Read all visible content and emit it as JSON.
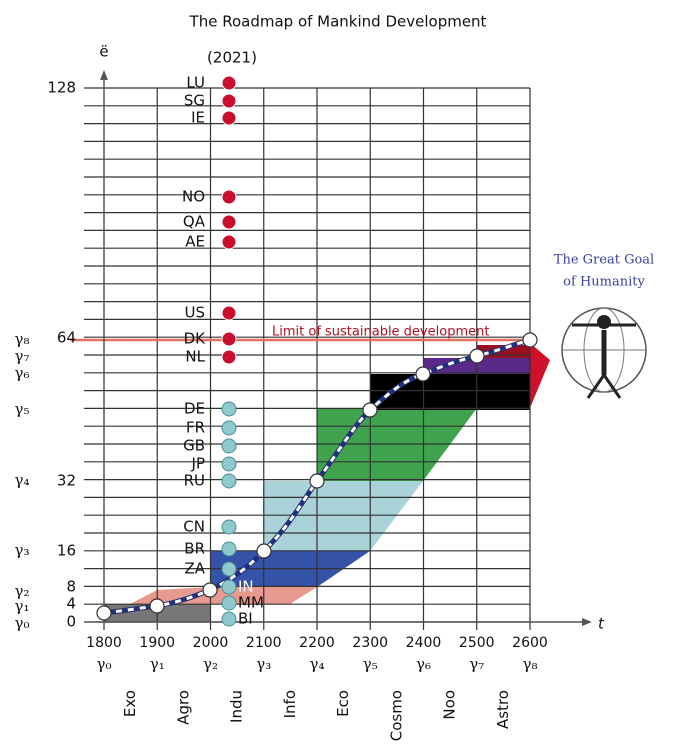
{
  "title": "The Roadmap of Mankind Development",
  "subtitle": "(2021)",
  "y_axis_label": "ë",
  "x_axis_label": "t",
  "y_labels": [
    "128",
    "64",
    "32",
    "16",
    "8",
    "4",
    "0"
  ],
  "gamma_levels": [
    "γ₈",
    "γ₇",
    "γ₆",
    "γ₅",
    "γ₄",
    "γ₃",
    "γ₂",
    "γ₁",
    "γ₀"
  ],
  "years": [
    "1800",
    "1900",
    "2000",
    "2100",
    "2200",
    "2300",
    "2400",
    "2500",
    "2600"
  ],
  "year_gammas": [
    "γ₀",
    "γ₁",
    "γ₂",
    "γ₃",
    "γ₄",
    "γ₅",
    "γ₆",
    "γ₇",
    "γ₈"
  ],
  "eras": [
    "Exo",
    "Agro",
    "Indu",
    "Info",
    "Eco",
    "Cosmo",
    "Noo",
    "Astro"
  ],
  "countries_above_limit": [
    "LU",
    "SG",
    "IE",
    "NO",
    "QA",
    "AE",
    "US",
    "DK",
    "NL"
  ],
  "countries_below_limit": [
    "DE",
    "FR",
    "GB",
    "JP",
    "RU",
    "CN",
    "BR",
    "ZA",
    "IN",
    "MM",
    "BI"
  ],
  "limit_label": "Limit of sustainable development",
  "goal": [
    "The Great Goal",
    "of Humanity"
  ]
}
